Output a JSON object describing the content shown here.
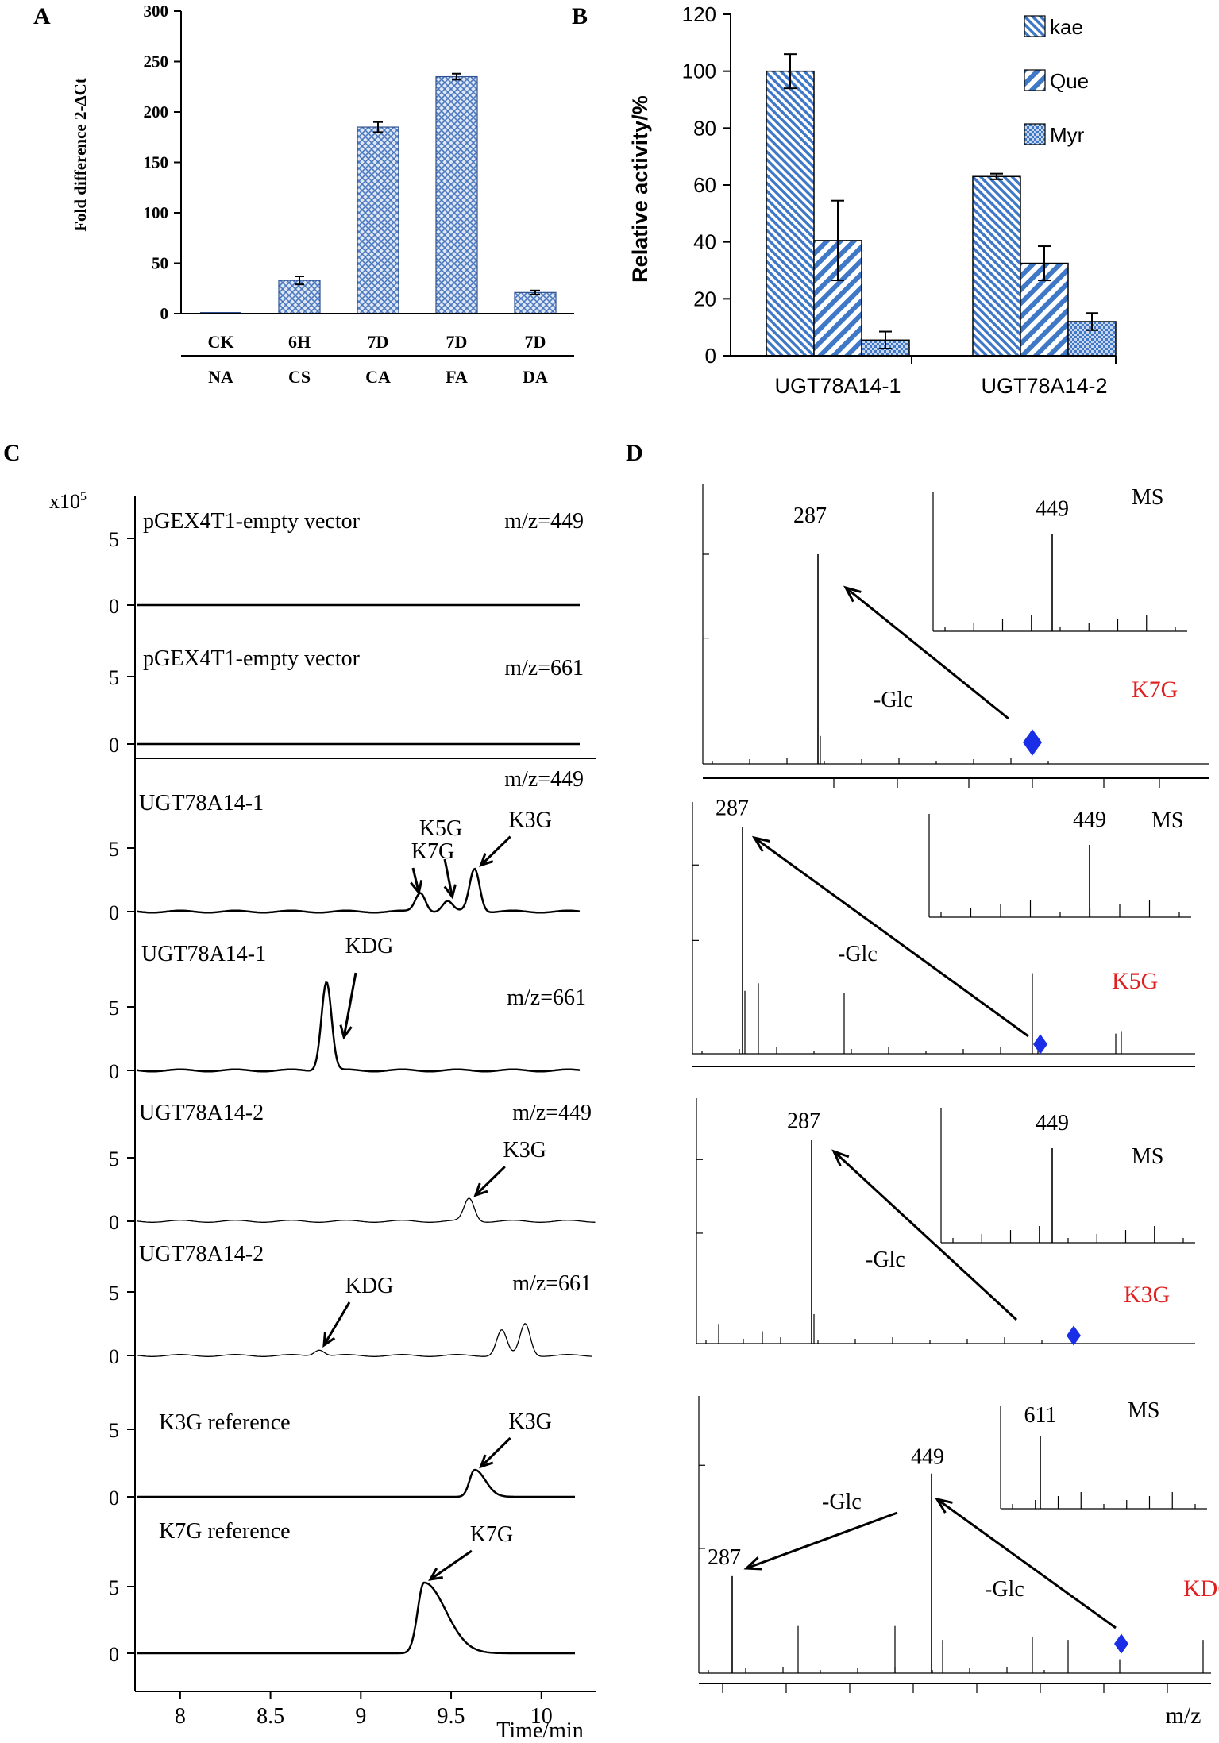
{
  "panels": {
    "A": {
      "label": "A",
      "chart_data": {
        "type": "bar",
        "ylabel": "Fold difference 2-ΔCt",
        "ylim": [
          0,
          300
        ],
        "yticks": [
          "0",
          "50",
          "100",
          "150",
          "200",
          "250",
          "300"
        ],
        "categories_top": [
          "CK",
          "6H",
          "7D",
          "7D",
          "7D"
        ],
        "categories_bottom": [
          "NA",
          "CS",
          "CA",
          "FA",
          "DA"
        ],
        "values": [
          0,
          33,
          185,
          235,
          21
        ],
        "errors": [
          0,
          4,
          5,
          3,
          2
        ],
        "color": "#4a78c0"
      }
    },
    "B": {
      "label": "B",
      "chart_data": {
        "type": "bar",
        "ylabel": "Relative activity/%",
        "ylim": [
          0,
          120
        ],
        "yticks": [
          "0",
          "20",
          "40",
          "60",
          "80",
          "100",
          "120"
        ],
        "categories": [
          "UGT78A14-1",
          "UGT78A14-2"
        ],
        "series": [
          {
            "name": "kae",
            "values": [
              100,
              63
            ],
            "errors": [
              6,
              1
            ]
          },
          {
            "name": "Que",
            "values": [
              40.5,
              32.5
            ],
            "errors": [
              14,
              6
            ]
          },
          {
            "name": "Myr",
            "values": [
              5.5,
              12
            ],
            "errors": [
              3,
              3
            ]
          }
        ],
        "color": "#3f78c6"
      }
    },
    "C": {
      "label": "C",
      "chart_data": {
        "type": "line",
        "scale_label": "x10",
        "scale_exp": "5",
        "xlabel": "Time/min",
        "xlim": [
          7.75,
          10.3
        ],
        "xticks": [
          "8",
          "8.5",
          "9",
          "9.5",
          "10"
        ],
        "traces": [
          {
            "name": "pGEX4T1-empty vector",
            "mz": "m/z=449",
            "peaks": []
          },
          {
            "name": "pGEX4T1-empty vector",
            "mz": "m/z=661",
            "peaks": []
          },
          {
            "name": "UGT78A14-1",
            "mz": "m/z=449",
            "peaks": [
              {
                "label": "K7G",
                "x": 9.33,
                "h": 1.5
              },
              {
                "label": "K5G",
                "x": 9.48,
                "h": 0.8
              },
              {
                "label": "K3G",
                "x": 9.63,
                "h": 3.4
              }
            ]
          },
          {
            "name": "UGT78A14-1",
            "mz": "m/z=661",
            "peaks": [
              {
                "label": "KDG",
                "x": 8.81,
                "h": 7.0
              }
            ]
          },
          {
            "name": "UGT78A14-2",
            "mz": "m/z=449",
            "peaks": [
              {
                "label": "K3G",
                "x": 9.6,
                "h": 1.8
              }
            ]
          },
          {
            "name": "UGT78A14-2",
            "mz": "m/z=661",
            "peaks": [
              {
                "label": "KDG",
                "x": 8.77,
                "h": 0.5
              },
              {
                "x": 9.78,
                "h": 2.0
              },
              {
                "x": 9.91,
                "h": 2.5
              }
            ]
          },
          {
            "name": "K3G  reference",
            "mz": "",
            "peaks": [
              {
                "label": "K3G",
                "x": 9.63,
                "h": 2.0
              }
            ]
          },
          {
            "name": "K7G  reference",
            "mz": "",
            "peaks": [
              {
                "label": "K7G",
                "x": 9.35,
                "h": 5.3
              }
            ]
          }
        ],
        "ytick_labels": [
          "5",
          "0"
        ]
      }
    },
    "D": {
      "label": "D",
      "xlabel": "m/z",
      "spectra": [
        {
          "compound": "K7G",
          "main_peak": "287",
          "inset_label": "MS",
          "inset_peak": "449",
          "loss": "-Glc"
        },
        {
          "compound": "K5G",
          "main_peak": "287",
          "inset_label": "MS",
          "inset_peak": "449",
          "loss": "-Glc"
        },
        {
          "compound": "K3G",
          "main_peak": "287",
          "inset_label": "MS",
          "inset_peak": "449",
          "loss": "-Glc"
        },
        {
          "compound": "KDG",
          "main_peak": "287",
          "mid_peak": "449",
          "inset_label": "MS",
          "inset_peak": "611",
          "loss": "-Glc",
          "loss2": "-Glc"
        }
      ],
      "compound_color": "#e02020",
      "marker_color": "#1a2ee8"
    }
  }
}
